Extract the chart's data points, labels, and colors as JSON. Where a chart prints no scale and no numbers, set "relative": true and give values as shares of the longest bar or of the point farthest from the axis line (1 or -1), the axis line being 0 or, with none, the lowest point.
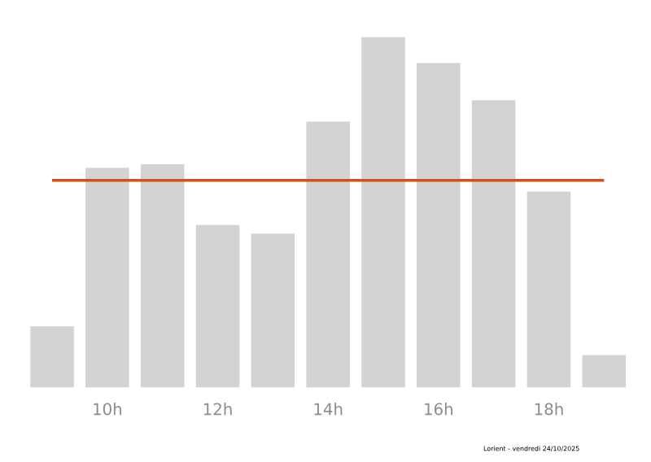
{
  "chart_data": {
    "type": "bar",
    "relative": true,
    "categories": [
      null,
      "10h",
      null,
      "12h",
      null,
      "14h",
      null,
      "16h",
      null,
      "18h",
      null
    ],
    "values": [
      0.174,
      0.627,
      0.637,
      0.464,
      0.439,
      0.759,
      1,
      0.926,
      0.82,
      0.559,
      0.092
    ],
    "color": "#d3d3d3",
    "ref_lines": [
      {
        "axis": "y",
        "value": 0.591,
        "color": "#d4501a"
      }
    ],
    "annotations": [
      "Lorient - vendredi 24/10/2025"
    ]
  }
}
